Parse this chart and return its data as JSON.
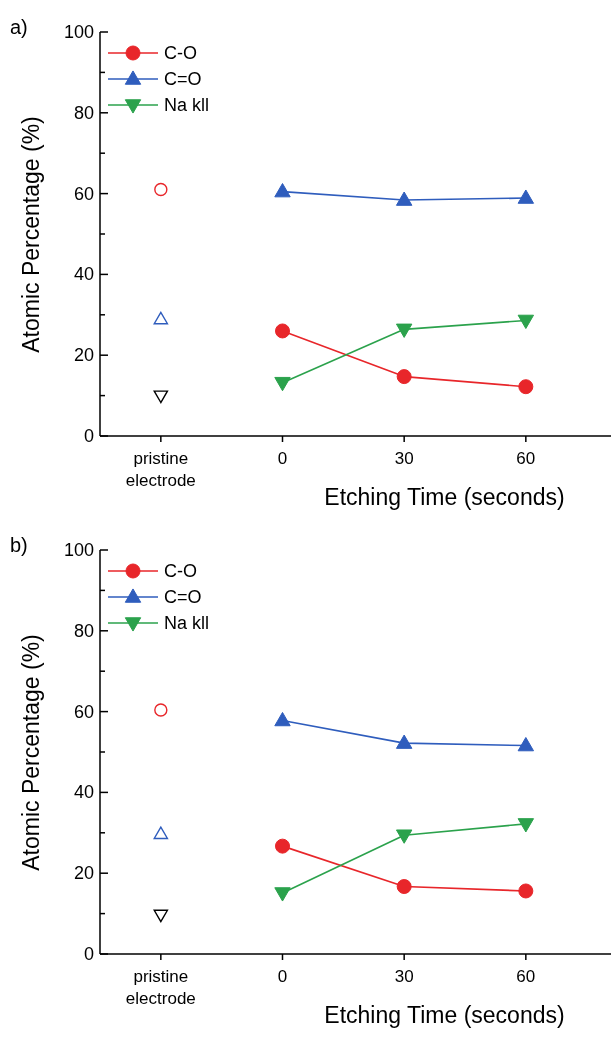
{
  "chart_data": [
    {
      "type": "line",
      "title": "a)",
      "xlabel": "Etching Time (seconds)",
      "ylabel": "Atomic Percentage (%)",
      "categories": [
        "pristine electrode",
        "0",
        "30",
        "60"
      ],
      "ylim": [
        0,
        100
      ],
      "yticks": [
        0,
        {
          "value": 10,
          "label": null
        },
        20,
        {
          "value": 30,
          "label": null
        },
        40,
        {
          "value": 50,
          "label": null
        },
        60,
        {
          "value": 70,
          "label": null
        },
        80,
        {
          "value": 90,
          "label": null
        },
        100
      ],
      "legend": "top left",
      "line_style": "solid",
      "series": [
        {
          "name": "C-O",
          "color": "#e8262a",
          "marker": "circle",
          "values": [
            null,
            26,
            14.7,
            12.2
          ]
        },
        {
          "name": "C=O",
          "color": "#2f5dbd",
          "marker": "triangle",
          "values": [
            null,
            60.5,
            58.4,
            58.9
          ]
        },
        {
          "name": "Na kll",
          "color": "#2ba24c",
          "marker": "triangle-down",
          "values": [
            null,
            13.2,
            26.4,
            28.6
          ]
        },
        {
          "type": "scatter",
          "color": "#e8262a",
          "marker": "circle",
          "values": [
            61,
            null,
            null,
            null
          ]
        },
        {
          "type": "scatter",
          "color": "#2f5dbd",
          "marker": "triangle",
          "values": [
            28.9,
            null,
            null,
            null
          ]
        },
        {
          "type": "scatter",
          "color": "#000000",
          "marker": "triangle-down",
          "values": [
            10,
            null,
            null,
            null
          ]
        }
      ]
    },
    {
      "type": "line",
      "title": "b)",
      "xlabel": "Etching Time (seconds)",
      "ylabel": "Atomic Percentage (%)",
      "categories": [
        "pristine electrode",
        "0",
        "30",
        "60"
      ],
      "ylim": [
        0,
        100
      ],
      "yticks": [
        0,
        {
          "value": 10,
          "label": null
        },
        20,
        {
          "value": 30,
          "label": null
        },
        40,
        {
          "value": 50,
          "label": null
        },
        60,
        {
          "value": 70,
          "label": null
        },
        80,
        {
          "value": 90,
          "label": null
        },
        100
      ],
      "legend": "top left",
      "line_style": "solid",
      "series": [
        {
          "name": "C-O",
          "color": "#e8262a",
          "marker": "circle",
          "values": [
            null,
            26.7,
            16.7,
            15.6
          ]
        },
        {
          "name": "C=O",
          "color": "#2f5dbd",
          "marker": "triangle",
          "values": [
            null,
            57.8,
            52.2,
            51.6
          ]
        },
        {
          "name": "Na kll",
          "color": "#2ba24c",
          "marker": "triangle-down",
          "values": [
            null,
            15.1,
            29.4,
            32.2
          ]
        },
        {
          "type": "scatter",
          "color": "#e8262a",
          "marker": "circle",
          "values": [
            60.4,
            null,
            null,
            null
          ]
        },
        {
          "type": "scatter",
          "color": "#2f5dbd",
          "marker": "triangle",
          "values": [
            29.7,
            null,
            null,
            null
          ]
        },
        {
          "type": "scatter",
          "color": "#000000",
          "marker": "triangle-down",
          "values": [
            9.7,
            null,
            null,
            null
          ]
        }
      ]
    }
  ]
}
